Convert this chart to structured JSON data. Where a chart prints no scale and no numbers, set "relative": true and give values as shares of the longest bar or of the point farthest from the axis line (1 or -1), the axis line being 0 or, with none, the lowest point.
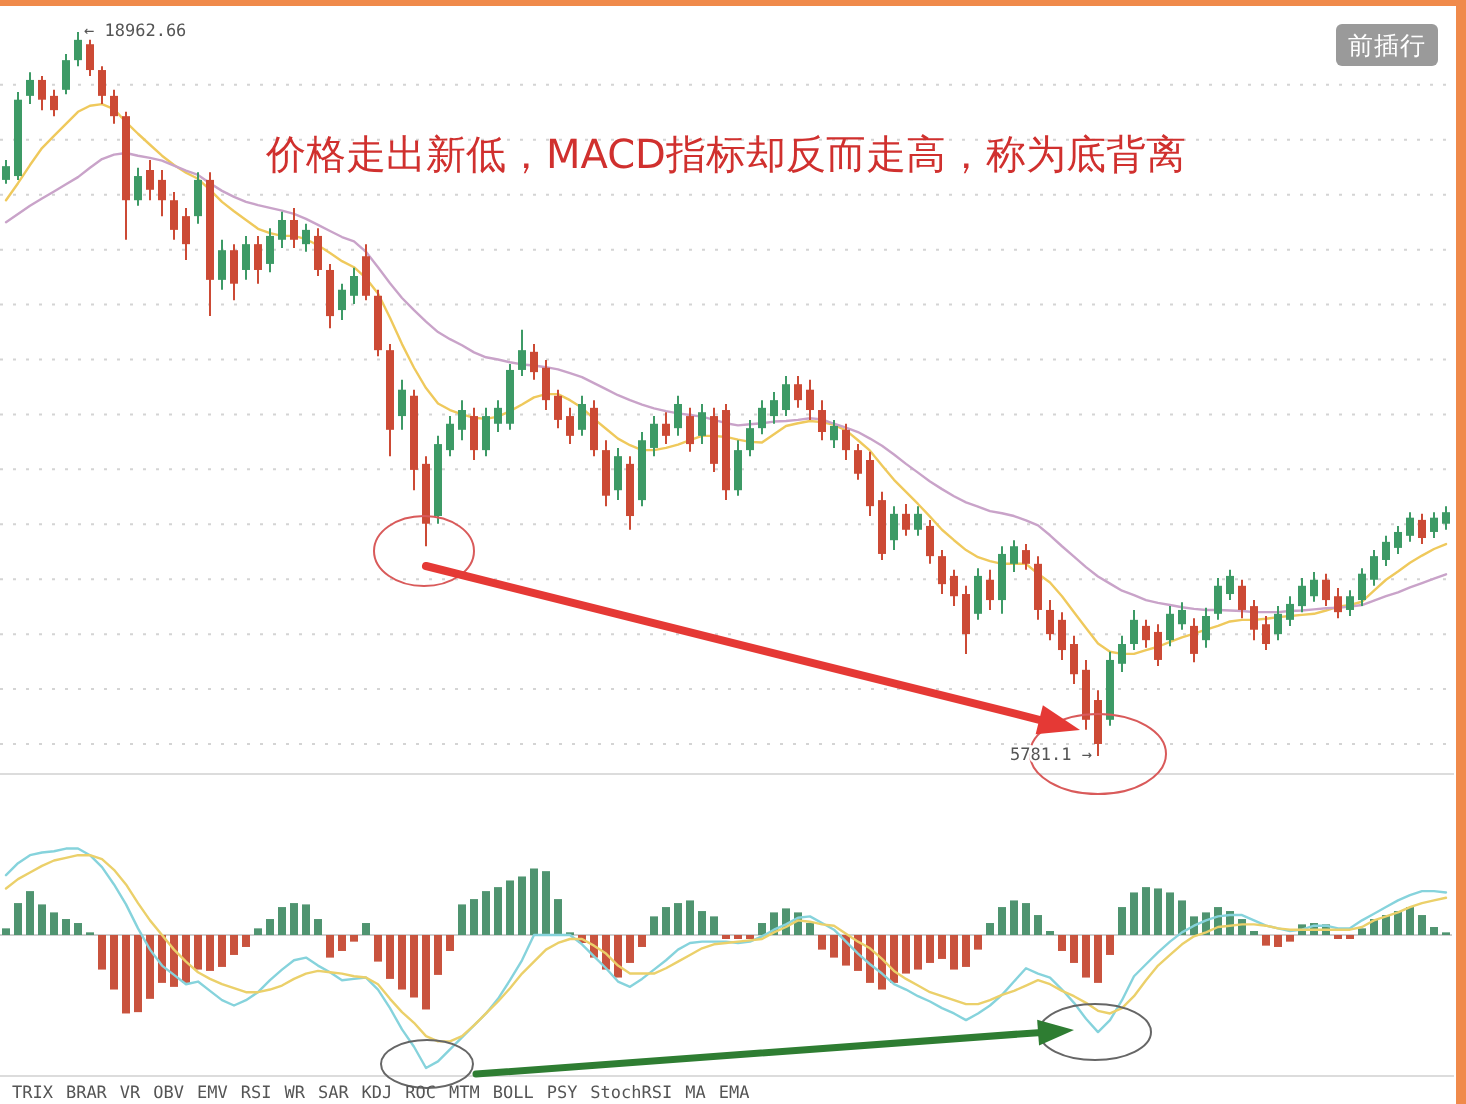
{
  "chart_data": [
    {
      "type": "candlestick",
      "categories": [
        null,
        null,
        null,
        null,
        null,
        null,
        null,
        null,
        null,
        null,
        null,
        null,
        null,
        null,
        null,
        null,
        null,
        null,
        null,
        null,
        null,
        null,
        null,
        null,
        null,
        null,
        null,
        null,
        null,
        null,
        null,
        null,
        null,
        null,
        null,
        null,
        null,
        null,
        null,
        null,
        null,
        null,
        null,
        null,
        null,
        null,
        null,
        null,
        null,
        null,
        null,
        null,
        null,
        null,
        null,
        null,
        null,
        null,
        null,
        null,
        null,
        null,
        null,
        null,
        null,
        null,
        null,
        null,
        null,
        null,
        null,
        null,
        null,
        null,
        null,
        null,
        null,
        null,
        null,
        null,
        null,
        null,
        null,
        null,
        null,
        null,
        null,
        null,
        null,
        null,
        null,
        null,
        null,
        null,
        null,
        null,
        null,
        null,
        null,
        null,
        null,
        null,
        null,
        null,
        null,
        null,
        null,
        null,
        null,
        null,
        null,
        null,
        null,
        null,
        null,
        null,
        null,
        null,
        null,
        null,
        null
      ],
      "ohlc": [
        [
          16270,
          16630,
          16200,
          16520
        ],
        [
          16340,
          17870,
          16270,
          17730
        ],
        [
          17800,
          18230,
          17650,
          18090
        ],
        [
          18090,
          18160,
          17540,
          17730
        ],
        [
          17800,
          17910,
          17430,
          17540
        ],
        [
          17910,
          18560,
          17830,
          18450
        ],
        [
          18450,
          18962.66,
          18340,
          18820
        ],
        [
          18740,
          18820,
          18160,
          18270
        ],
        [
          18270,
          18340,
          17650,
          17800
        ],
        [
          17800,
          17910,
          17290,
          17430
        ],
        [
          17430,
          17510,
          15180,
          15900
        ],
        [
          15900,
          16490,
          15800,
          16340
        ],
        [
          16450,
          16630,
          15900,
          16090
        ],
        [
          16270,
          16450,
          15610,
          15900
        ],
        [
          15900,
          16050,
          15180,
          15360
        ],
        [
          15610,
          15760,
          14810,
          15100
        ],
        [
          15610,
          16410,
          15470,
          16270
        ],
        [
          16270,
          16410,
          13790,
          14450
        ],
        [
          14450,
          15180,
          14270,
          14990
        ],
        [
          14990,
          15100,
          14080,
          14380
        ],
        [
          14630,
          15250,
          14450,
          15100
        ],
        [
          15100,
          15250,
          14380,
          14630
        ],
        [
          14740,
          15390,
          14590,
          15250
        ],
        [
          15180,
          15690,
          15030,
          15540
        ],
        [
          15540,
          15760,
          15030,
          15180
        ],
        [
          15100,
          15470,
          14960,
          15360
        ],
        [
          15250,
          15390,
          14520,
          14630
        ],
        [
          14630,
          14740,
          13570,
          13790
        ],
        [
          13900,
          14380,
          13720,
          14270
        ],
        [
          14160,
          14670,
          14010,
          14520
        ],
        [
          14880,
          15100,
          14080,
          14160
        ],
        [
          14160,
          14270,
          13060,
          13170
        ],
        [
          13170,
          13280,
          11240,
          11720
        ],
        [
          11970,
          12630,
          11720,
          12450
        ],
        [
          12340,
          12450,
          10620,
          10990
        ],
        [
          11100,
          11240,
          9600,
          10010
        ],
        [
          10150,
          11610,
          10010,
          11460
        ],
        [
          11350,
          11970,
          11240,
          11830
        ],
        [
          11720,
          12260,
          11530,
          12080
        ],
        [
          11970,
          12120,
          11170,
          11350
        ],
        [
          11350,
          12120,
          11240,
          11970
        ],
        [
          11830,
          12260,
          11680,
          12120
        ],
        [
          11830,
          12920,
          11720,
          12810
        ],
        [
          12810,
          13540,
          12700,
          13170
        ],
        [
          13140,
          13280,
          12630,
          12770
        ],
        [
          12850,
          12990,
          12080,
          12260
        ],
        [
          12340,
          12450,
          11750,
          11900
        ],
        [
          11970,
          12120,
          11460,
          11610
        ],
        [
          11720,
          12340,
          11610,
          12190
        ],
        [
          12120,
          12260,
          11240,
          11350
        ],
        [
          11350,
          11530,
          10330,
          10520
        ],
        [
          10620,
          11390,
          10440,
          11240
        ],
        [
          11100,
          11240,
          9900,
          10150
        ],
        [
          10440,
          11680,
          10330,
          11530
        ],
        [
          11390,
          11970,
          11240,
          11830
        ],
        [
          11830,
          12040,
          11460,
          11610
        ],
        [
          11750,
          12340,
          11610,
          12190
        ],
        [
          11970,
          12120,
          11320,
          11460
        ],
        [
          11610,
          12190,
          11460,
          12040
        ],
        [
          11970,
          12120,
          10950,
          11100
        ],
        [
          12080,
          12190,
          10440,
          10620
        ],
        [
          10620,
          11530,
          10520,
          11350
        ],
        [
          11350,
          11900,
          11240,
          11750
        ],
        [
          11750,
          12260,
          11640,
          12120
        ],
        [
          11970,
          12410,
          11830,
          12260
        ],
        [
          12080,
          12700,
          11970,
          12550
        ],
        [
          12550,
          12700,
          12120,
          12260
        ],
        [
          12450,
          12630,
          11900,
          12080
        ],
        [
          12080,
          12260,
          11530,
          11680
        ],
        [
          11530,
          11900,
          11390,
          11790
        ],
        [
          11720,
          11830,
          11170,
          11350
        ],
        [
          11350,
          11460,
          10810,
          10920
        ],
        [
          11170,
          11320,
          10150,
          10330
        ],
        [
          10440,
          10590,
          9350,
          9460
        ],
        [
          9710,
          10330,
          9530,
          10190
        ],
        [
          10190,
          10370,
          9790,
          9900
        ],
        [
          9900,
          10330,
          9790,
          10190
        ],
        [
          9970,
          10080,
          9280,
          9420
        ],
        [
          9420,
          9530,
          8730,
          8910
        ],
        [
          9060,
          9170,
          8510,
          8690
        ],
        [
          8730,
          8880,
          7640,
          8000
        ],
        [
          8370,
          9200,
          8260,
          9060
        ],
        [
          8990,
          9170,
          8440,
          8620
        ],
        [
          8620,
          9600,
          8370,
          9460
        ],
        [
          9280,
          9710,
          9130,
          9600
        ],
        [
          9530,
          9640,
          9170,
          9280
        ],
        [
          9280,
          9420,
          8260,
          8440
        ],
        [
          8440,
          8620,
          7890,
          8000
        ],
        [
          8260,
          8400,
          7530,
          7710
        ],
        [
          7820,
          7970,
          7090,
          7270
        ],
        [
          7350,
          7530,
          6260,
          6440
        ],
        [
          6800,
          6980,
          5781.1,
          6000
        ],
        [
          6440,
          7680,
          6330,
          7530
        ],
        [
          7460,
          7970,
          7310,
          7820
        ],
        [
          7820,
          8440,
          7710,
          8260
        ],
        [
          8150,
          8260,
          7750,
          7890
        ],
        [
          8040,
          8180,
          7420,
          7530
        ],
        [
          7890,
          8510,
          7780,
          8370
        ],
        [
          8180,
          8580,
          8080,
          8440
        ],
        [
          8150,
          8290,
          7490,
          7640
        ],
        [
          7890,
          8480,
          7750,
          8330
        ],
        [
          8370,
          9020,
          8260,
          8880
        ],
        [
          8730,
          9170,
          8620,
          9060
        ],
        [
          8880,
          8990,
          8290,
          8440
        ],
        [
          8510,
          8620,
          7890,
          8080
        ],
        [
          8180,
          8330,
          7710,
          7820
        ],
        [
          8000,
          8510,
          7890,
          8370
        ],
        [
          8260,
          8690,
          8150,
          8550
        ],
        [
          8510,
          9020,
          8400,
          8880
        ],
        [
          8690,
          9130,
          8590,
          8990
        ],
        [
          8990,
          9100,
          8510,
          8620
        ],
        [
          8690,
          8840,
          8290,
          8400
        ],
        [
          8440,
          8800,
          8330,
          8690
        ],
        [
          8620,
          9200,
          8510,
          9100
        ],
        [
          8990,
          9530,
          8880,
          9420
        ],
        [
          9350,
          9790,
          9240,
          9680
        ],
        [
          9570,
          9970,
          9460,
          9860
        ],
        [
          9790,
          10220,
          9680,
          10120
        ],
        [
          10080,
          10190,
          9640,
          9750
        ],
        [
          9860,
          10220,
          9750,
          10120
        ],
        [
          10010,
          10330,
          9900,
          10220
        ]
      ],
      "colors": [
        "#3d9a66",
        "#3d9a66",
        "#3d9a66",
        "#cc4a35",
        "#cc4a35",
        "#3d9a66",
        "#3d9a66",
        "#cc4a35",
        "#cc4a35",
        "#cc4a35",
        "#cc4a35",
        "#3d9a66",
        "#cc4a35",
        "#cc4a35",
        "#cc4a35",
        "#cc4a35",
        "#3d9a66",
        "#cc4a35",
        "#3d9a66",
        "#cc4a35",
        "#3d9a66",
        "#cc4a35",
        "#3d9a66",
        "#3d9a66",
        "#cc4a35",
        "#3d9a66",
        "#cc4a35",
        "#cc4a35",
        "#3d9a66",
        "#3d9a66",
        "#cc4a35",
        "#cc4a35",
        "#cc4a35",
        "#3d9a66",
        "#cc4a35",
        "#cc4a35",
        "#3d9a66",
        "#3d9a66",
        "#3d9a66",
        "#cc4a35",
        "#3d9a66",
        "#3d9a66",
        "#3d9a66",
        "#3d9a66",
        "#cc4a35",
        "#cc4a35",
        "#cc4a35",
        "#cc4a35",
        "#3d9a66",
        "#cc4a35",
        "#cc4a35",
        "#3d9a66",
        "#cc4a35",
        "#3d9a66",
        "#3d9a66",
        "#cc4a35",
        "#3d9a66",
        "#cc4a35",
        "#3d9a66",
        "#cc4a35",
        "#cc4a35",
        "#3d9a66",
        "#3d9a66",
        "#3d9a66",
        "#3d9a66",
        "#3d9a66",
        "#cc4a35",
        "#cc4a35",
        "#cc4a35",
        "#3d9a66",
        "#cc4a35",
        "#cc4a35",
        "#cc4a35",
        "#cc4a35",
        "#3d9a66",
        "#cc4a35",
        "#3d9a66",
        "#cc4a35",
        "#cc4a35",
        "#cc4a35",
        "#cc4a35",
        "#3d9a66",
        "#cc4a35",
        "#3d9a66",
        "#3d9a66",
        "#cc4a35",
        "#cc4a35",
        "#cc4a35",
        "#cc4a35",
        "#cc4a35",
        "#cc4a35",
        "#cc4a35",
        "#3d9a66",
        "#3d9a66",
        "#3d9a66",
        "#cc4a35",
        "#cc4a35",
        "#3d9a66",
        "#3d9a66",
        "#cc4a35",
        "#3d9a66",
        "#3d9a66",
        "#3d9a66",
        "#cc4a35",
        "#cc4a35",
        "#cc4a35",
        "#3d9a66",
        "#3d9a66",
        "#3d9a66",
        "#3d9a66",
        "#cc4a35",
        "#cc4a35",
        "#3d9a66",
        "#3d9a66",
        "#3d9a66",
        "#3d9a66",
        "#3d9a66",
        "#3d9a66",
        "#cc4a35",
        "#3d9a66",
        "#3d9a66"
      ],
      "series": [
        {
          "type": "line",
          "color": "#efc95c",
          "values": [
            15900,
            16210,
            16540,
            16850,
            17070,
            17290,
            17510,
            17620,
            17650,
            17560,
            17320,
            17110,
            16910,
            16710,
            16540,
            16400,
            16290,
            16090,
            15870,
            15700,
            15540,
            15380,
            15300,
            15250,
            15250,
            15190,
            15080,
            14940,
            14790,
            14680,
            14480,
            14200,
            13760,
            13280,
            12850,
            12480,
            12200,
            12080,
            12000,
            11940,
            11920,
            11960,
            12060,
            12180,
            12310,
            12370,
            12370,
            12260,
            12120,
            11920,
            11740,
            11560,
            11440,
            11350,
            11350,
            11390,
            11450,
            11530,
            11610,
            11610,
            11590,
            11540,
            11500,
            11490,
            11640,
            11790,
            11840,
            11880,
            11860,
            11810,
            11710,
            11530,
            11340,
            11070,
            10810,
            10590,
            10370,
            10140,
            9900,
            9710,
            9530,
            9400,
            9330,
            9280,
            9280,
            9280,
            9100,
            8940,
            8690,
            8400,
            8110,
            7830,
            7680,
            7640,
            7640,
            7710,
            7770,
            7860,
            7940,
            8010,
            8080,
            8150,
            8230,
            8260,
            8260,
            8280,
            8310,
            8330,
            8350,
            8370,
            8430,
            8500,
            8530,
            8590,
            8790,
            8990,
            9140,
            9300,
            9430,
            9550,
            9640
          ]
        },
        {
          "type": "line",
          "color": "#c9a3c9",
          "values": [
            15500,
            15650,
            15800,
            15930,
            16060,
            16190,
            16320,
            16490,
            16650,
            16730,
            16760,
            16710,
            16670,
            16620,
            16530,
            16440,
            16360,
            16210,
            16070,
            15960,
            15870,
            15810,
            15760,
            15710,
            15650,
            15560,
            15450,
            15340,
            15230,
            15150,
            14960,
            14680,
            14390,
            14120,
            13900,
            13690,
            13500,
            13370,
            13260,
            13130,
            13040,
            13000,
            12950,
            12910,
            12890,
            12860,
            12820,
            12750,
            12680,
            12570,
            12460,
            12350,
            12260,
            12180,
            12110,
            12060,
            12020,
            11990,
            11960,
            11900,
            11840,
            11800,
            11820,
            11840,
            11870,
            11880,
            11900,
            11930,
            11910,
            11830,
            11760,
            11680,
            11560,
            11430,
            11270,
            11100,
            10940,
            10780,
            10640,
            10510,
            10400,
            10320,
            10240,
            10200,
            10150,
            10070,
            9980,
            9800,
            9600,
            9410,
            9220,
            9050,
            8920,
            8790,
            8710,
            8620,
            8570,
            8530,
            8490,
            8460,
            8440,
            8440,
            8430,
            8420,
            8400,
            8400,
            8400,
            8420,
            8430,
            8450,
            8470,
            8480,
            8500,
            8530,
            8610,
            8690,
            8760,
            8850,
            8930,
            9010,
            9090
          ]
        }
      ],
      "yticks": [
        {
          "value": 6000,
          "label": null
        },
        {
          "value": 7000,
          "label": null
        },
        {
          "value": 8000,
          "label": null
        },
        {
          "value": 9000,
          "label": null
        },
        {
          "value": 10000,
          "label": null
        },
        {
          "value": 11000,
          "label": null
        },
        {
          "value": 12000,
          "label": null
        },
        {
          "value": 13000,
          "label": null
        },
        {
          "value": 14000,
          "label": null
        },
        {
          "value": 15000,
          "label": null
        },
        {
          "value": 16000,
          "label": null
        },
        {
          "value": 17000,
          "label": null
        },
        {
          "value": 18000,
          "label": null
        }
      ],
      "grid": "y",
      "annotations": [
        "价格走出新低，MACD指标却反而走高，称为底背离",
        "前插行",
        "← 18962.66",
        "5781.1 →"
      ]
    },
    {
      "type": "bar",
      "relative": true,
      "categories": [
        null,
        null,
        null,
        null,
        null,
        null,
        null,
        null,
        null,
        null,
        null,
        null,
        null,
        null,
        null,
        null,
        null,
        null,
        null,
        null,
        null,
        null,
        null,
        null,
        null,
        null,
        null,
        null,
        null,
        null,
        null,
        null,
        null,
        null,
        null,
        null,
        null,
        null,
        null,
        null,
        null,
        null,
        null,
        null,
        null,
        null,
        null,
        null,
        null,
        null,
        null,
        null,
        null,
        null,
        null,
        null,
        null,
        null,
        null,
        null,
        null,
        null,
        null,
        null,
        null,
        null,
        null,
        null,
        null,
        null,
        null,
        null,
        null,
        null,
        null,
        null,
        null,
        null,
        null,
        null,
        null,
        null,
        null,
        null,
        null,
        null,
        null,
        null,
        null,
        null,
        null,
        null,
        null,
        null,
        null,
        null,
        null,
        null,
        null,
        null,
        null,
        null,
        null,
        null,
        null,
        null,
        null,
        null,
        null,
        null,
        null,
        null,
        null,
        null,
        null,
        null,
        null,
        null,
        null,
        null,
        null
      ],
      "series": [
        {
          "type": "bar",
          "values": [
            0.05,
            0.24,
            0.33,
            0.23,
            0.17,
            0.12,
            0.09,
            0.02,
            -0.26,
            -0.41,
            -0.59,
            -0.58,
            -0.48,
            -0.36,
            -0.39,
            -0.36,
            -0.26,
            -0.27,
            -0.24,
            -0.15,
            -0.09,
            0.05,
            0.12,
            0.21,
            0.24,
            0.23,
            0.12,
            -0.17,
            -0.12,
            -0.05,
            0.09,
            -0.2,
            -0.33,
            -0.41,
            -0.47,
            -0.56,
            -0.3,
            -0.12,
            0.23,
            0.27,
            0.33,
            0.36,
            0.41,
            0.44,
            0.5,
            0.48,
            0.27,
            0.02,
            -0.06,
            -0.17,
            -0.26,
            -0.32,
            -0.21,
            -0.09,
            0.14,
            0.21,
            0.24,
            0.26,
            0.18,
            0.14,
            -0.03,
            -0.03,
            -0.03,
            0.09,
            0.17,
            0.2,
            0.17,
            0.09,
            -0.11,
            -0.17,
            -0.23,
            -0.27,
            -0.36,
            -0.41,
            -0.36,
            -0.29,
            -0.26,
            -0.21,
            -0.18,
            -0.26,
            -0.24,
            -0.11,
            0.09,
            0.21,
            0.26,
            0.24,
            0.15,
            0.03,
            -0.12,
            -0.21,
            -0.32,
            -0.36,
            -0.15,
            0.21,
            0.32,
            0.36,
            0.35,
            0.32,
            0.26,
            0.14,
            0.17,
            0.21,
            0.18,
            0.12,
            0.03,
            -0.08,
            -0.09,
            -0.05,
            0.08,
            0.09,
            0.08,
            -0.03,
            -0.03,
            0.05,
            0.12,
            0.15,
            0.18,
            0.21,
            0.15,
            0.06,
            0.02
          ],
          "colors": [
            "#4f9470",
            "#4f9470",
            "#4f9470",
            "#4f9470",
            "#4f9470",
            "#4f9470",
            "#4f9470",
            "#4f9470",
            "#c9533e",
            "#c9533e",
            "#c9533e",
            "#c9533e",
            "#c9533e",
            "#c9533e",
            "#c9533e",
            "#c9533e",
            "#c9533e",
            "#c9533e",
            "#c9533e",
            "#c9533e",
            "#c9533e",
            "#4f9470",
            "#4f9470",
            "#4f9470",
            "#4f9470",
            "#4f9470",
            "#4f9470",
            "#c9533e",
            "#c9533e",
            "#c9533e",
            "#4f9470",
            "#c9533e",
            "#c9533e",
            "#c9533e",
            "#c9533e",
            "#c9533e",
            "#c9533e",
            "#c9533e",
            "#4f9470",
            "#4f9470",
            "#4f9470",
            "#4f9470",
            "#4f9470",
            "#4f9470",
            "#4f9470",
            "#4f9470",
            "#4f9470",
            "#4f9470",
            "#c9533e",
            "#c9533e",
            "#c9533e",
            "#c9533e",
            "#c9533e",
            "#c9533e",
            "#4f9470",
            "#4f9470",
            "#4f9470",
            "#4f9470",
            "#4f9470",
            "#4f9470",
            "#c9533e",
            "#c9533e",
            "#c9533e",
            "#4f9470",
            "#4f9470",
            "#4f9470",
            "#4f9470",
            "#4f9470",
            "#c9533e",
            "#c9533e",
            "#c9533e",
            "#c9533e",
            "#c9533e",
            "#c9533e",
            "#c9533e",
            "#c9533e",
            "#c9533e",
            "#c9533e",
            "#c9533e",
            "#c9533e",
            "#c9533e",
            "#c9533e",
            "#4f9470",
            "#4f9470",
            "#4f9470",
            "#4f9470",
            "#4f9470",
            "#4f9470",
            "#c9533e",
            "#c9533e",
            "#c9533e",
            "#c9533e",
            "#c9533e",
            "#4f9470",
            "#4f9470",
            "#4f9470",
            "#4f9470",
            "#4f9470",
            "#4f9470",
            "#4f9470",
            "#4f9470",
            "#4f9470",
            "#4f9470",
            "#4f9470",
            "#4f9470",
            "#c9533e",
            "#c9533e",
            "#c9533e",
            "#4f9470",
            "#4f9470",
            "#4f9470",
            "#c9533e",
            "#c9533e",
            "#4f9470",
            "#4f9470",
            "#4f9470",
            "#4f9470",
            "#4f9470",
            "#4f9470",
            "#4f9470",
            "#4f9470"
          ]
        },
        {
          "type": "line",
          "color": "#86d3dc",
          "values": [
            0.45,
            0.54,
            0.6,
            0.62,
            0.63,
            0.65,
            0.65,
            0.6,
            0.51,
            0.38,
            0.23,
            0.05,
            -0.11,
            -0.23,
            -0.3,
            -0.37,
            -0.35,
            -0.42,
            -0.49,
            -0.53,
            -0.49,
            -0.43,
            -0.34,
            -0.26,
            -0.19,
            -0.17,
            -0.23,
            -0.28,
            -0.34,
            -0.33,
            -0.32,
            -0.41,
            -0.55,
            -0.71,
            -0.84,
            -1,
            -0.95,
            -0.86,
            -0.77,
            -0.68,
            -0.59,
            -0.48,
            -0.34,
            -0.19,
            0,
            0,
            0,
            0,
            -0.07,
            -0.16,
            -0.25,
            -0.35,
            -0.39,
            -0.33,
            -0.26,
            -0.19,
            -0.11,
            -0.06,
            -0.05,
            -0.05,
            -0.05,
            -0.06,
            -0.05,
            -0.01,
            0.04,
            0.08,
            0.13,
            0.14,
            0.09,
            0.04,
            -0.05,
            -0.14,
            -0.22,
            -0.29,
            -0.37,
            -0.41,
            -0.46,
            -0.5,
            -0.55,
            -0.59,
            -0.64,
            -0.59,
            -0.53,
            -0.45,
            -0.35,
            -0.25,
            -0.29,
            -0.32,
            -0.41,
            -0.51,
            -0.63,
            -0.73,
            -0.64,
            -0.49,
            -0.31,
            -0.22,
            -0.13,
            -0.05,
            0.02,
            0.07,
            0.11,
            0.14,
            0.15,
            0.15,
            0.11,
            0.07,
            0.05,
            0.03,
            0.04,
            0.07,
            0.07,
            0.05,
            0.05,
            0.11,
            0.16,
            0.21,
            0.26,
            0.3,
            0.33,
            0.33,
            0.32
          ]
        },
        {
          "type": "line",
          "color": "#ebd06a",
          "values": [
            0.35,
            0.42,
            0.47,
            0.52,
            0.56,
            0.58,
            0.6,
            0.6,
            0.57,
            0.49,
            0.38,
            0.24,
            0.11,
            0,
            -0.11,
            -0.2,
            -0.28,
            -0.33,
            -0.37,
            -0.4,
            -0.43,
            -0.43,
            -0.41,
            -0.38,
            -0.33,
            -0.29,
            -0.27,
            -0.28,
            -0.29,
            -0.31,
            -0.32,
            -0.37,
            -0.48,
            -0.58,
            -0.66,
            -0.76,
            -0.8,
            -0.8,
            -0.76,
            -0.68,
            -0.59,
            -0.5,
            -0.4,
            -0.29,
            -0.2,
            -0.11,
            -0.06,
            -0.03,
            -0.03,
            -0.08,
            -0.14,
            -0.23,
            -0.29,
            -0.29,
            -0.29,
            -0.25,
            -0.2,
            -0.15,
            -0.1,
            -0.07,
            -0.06,
            -0.05,
            -0.04,
            -0.03,
            0.02,
            0.06,
            0.11,
            0.1,
            0.08,
            0.07,
            0.01,
            -0.05,
            -0.1,
            -0.18,
            -0.27,
            -0.33,
            -0.38,
            -0.43,
            -0.46,
            -0.49,
            -0.52,
            -0.52,
            -0.49,
            -0.45,
            -0.42,
            -0.38,
            -0.34,
            -0.37,
            -0.42,
            -0.46,
            -0.51,
            -0.57,
            -0.59,
            -0.55,
            -0.46,
            -0.34,
            -0.23,
            -0.15,
            -0.07,
            -0.01,
            0.02,
            0.06,
            0.07,
            0.08,
            0.08,
            0.07,
            0.05,
            0.04,
            0.04,
            0.04,
            0.04,
            0.04,
            0.04,
            0.06,
            0.11,
            0.14,
            0.17,
            0.21,
            0.24,
            0.26,
            0.28
          ]
        }
      ],
      "annotations": [
        "TRIX",
        "BRAR",
        "VR",
        "OBV",
        "EMV",
        "RSI",
        "WR",
        "SAR",
        "KDJ",
        "ROC",
        "MTM",
        "BOLL",
        "PSY",
        "StochRSI",
        "MA",
        "EMA"
      ]
    }
  ]
}
